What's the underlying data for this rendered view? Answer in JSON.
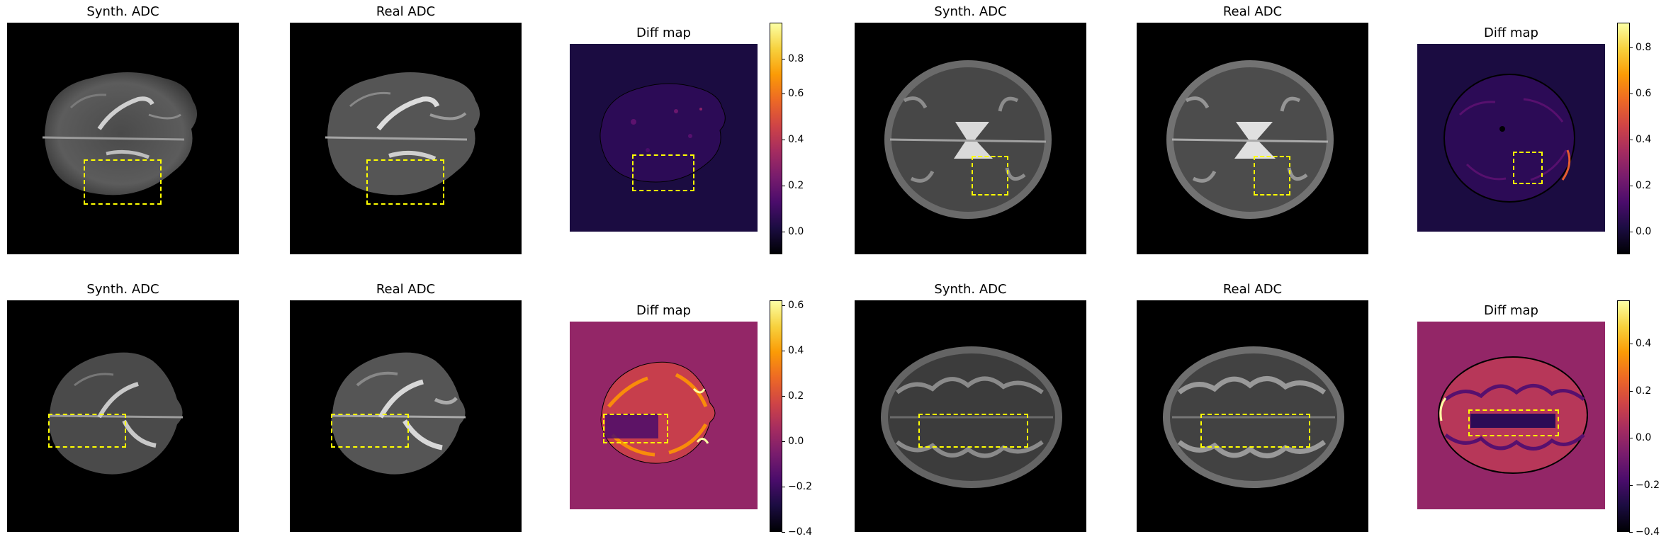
{
  "rows": [
    {
      "panels": [
        {
          "title": "Synth. ADC",
          "kind": "adc"
        },
        {
          "title": "Real ADC",
          "kind": "adc"
        },
        {
          "title": "Diff map",
          "kind": "diff",
          "bg": "#1b0c41",
          "colorbar": {
            "min": -0.1,
            "max": 0.9,
            "ticks": [
              "0.8",
              "0.6",
              "0.4",
              "0.2",
              "0.0"
            ],
            "tick_values": [
              0.8,
              0.6,
              0.4,
              0.2,
              0.0
            ]
          }
        },
        {
          "title": "Synth. ADC",
          "kind": "adc"
        },
        {
          "title": "Real ADC",
          "kind": "adc"
        },
        {
          "title": "Diff map",
          "kind": "diff",
          "bg": "#1b0c41",
          "colorbar": {
            "min": -0.1,
            "max": 0.9,
            "ticks": [
              "0.8",
              "0.6",
              "0.4",
              "0.2",
              "0.0"
            ],
            "tick_values": [
              0.8,
              0.6,
              0.4,
              0.2,
              0.0
            ]
          }
        }
      ]
    },
    {
      "panels": [
        {
          "title": "Synth. ADC",
          "kind": "adc"
        },
        {
          "title": "Real ADC",
          "kind": "adc"
        },
        {
          "title": "Diff map",
          "kind": "diff",
          "bg": "#932667",
          "colorbar": {
            "min": -0.4,
            "max": 0.62,
            "ticks": [
              "0.6",
              "0.4",
              "0.2",
              "0.0",
              "−0.2",
              "−0.4"
            ],
            "tick_values": [
              0.6,
              0.4,
              0.2,
              0.0,
              -0.2,
              -0.4
            ]
          }
        },
        {
          "title": "Synth. ADC",
          "kind": "adc"
        },
        {
          "title": "Real ADC",
          "kind": "adc"
        },
        {
          "title": "Diff map",
          "kind": "diff",
          "bg": "#932667",
          "colorbar": {
            "min": -0.4,
            "max": 0.58,
            "ticks": [
              "0.4",
              "0.2",
              "0.0",
              "−0.2",
              "−0.4"
            ],
            "tick_values": [
              0.4,
              0.2,
              0.0,
              -0.2,
              -0.4
            ]
          }
        }
      ]
    }
  ],
  "colors": {
    "roi": "#ffff00",
    "adc_background": "#000000"
  }
}
